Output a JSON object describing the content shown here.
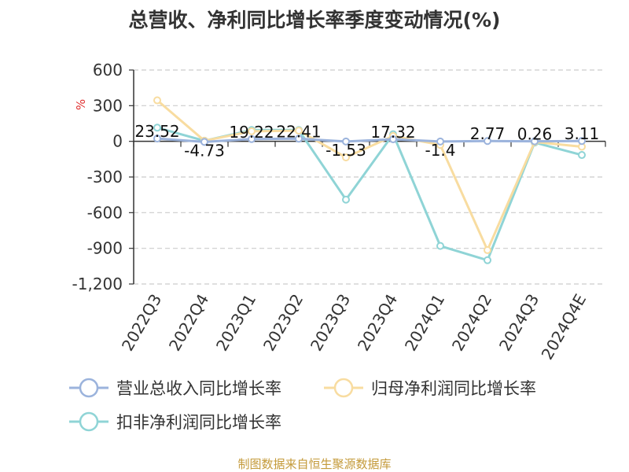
{
  "chart_data": {
    "type": "line",
    "title": "总营收、净利同比增长率季度变动情况(%)",
    "ylabel": "%",
    "categories": [
      "2022Q3",
      "2022Q4",
      "2023Q1",
      "2023Q2",
      "2023Q3",
      "2023Q4",
      "2024Q1",
      "2024Q2",
      "2024Q3",
      "2024Q4E"
    ],
    "ylim": [
      -1200,
      600
    ],
    "yticks": [
      600,
      300,
      0,
      -300,
      -600,
      -900,
      -1200
    ],
    "ytick_labels": [
      "600",
      "300",
      "0",
      "-300",
      "-600",
      "-900",
      "-1,200"
    ],
    "grid": true,
    "legend_position": "bottom",
    "series": [
      {
        "name": "营业总收入同比增长率",
        "color": "#9bb3dc",
        "values": [
          23.52,
          -4.73,
          19.22,
          22.41,
          -1.53,
          17.32,
          -1.4,
          2.77,
          0.26,
          3.11
        ],
        "labels": [
          "23.52",
          "-4.73",
          "19.22",
          "22.41",
          "-1.53",
          "17.32",
          "-1.4",
          "2.77",
          "0.26",
          "3.11"
        ]
      },
      {
        "name": "归母净利润同比增长率",
        "color": "#f8dca0",
        "values": [
          345,
          5,
          85,
          90,
          -135,
          45,
          -30,
          -915,
          -5,
          -45
        ]
      },
      {
        "name": "扣非净利润同比增长率",
        "color": "#8fd4d6",
        "values": [
          115,
          5,
          95,
          95,
          -490,
          60,
          -880,
          -1000,
          -10,
          -115
        ]
      }
    ]
  },
  "source": "制图数据来自恒生聚源数据库"
}
